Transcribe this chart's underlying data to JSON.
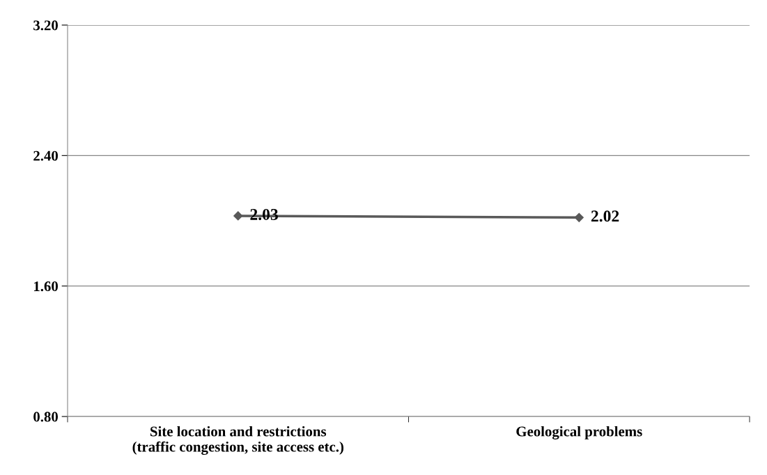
{
  "chart_data": {
    "type": "line",
    "categories": [
      "Site location and restrictions\n(traffic congestion, site access etc.)",
      "Geological problems"
    ],
    "series": [
      {
        "color": "#595959",
        "values": [
          2.03,
          2.02
        ]
      }
    ],
    "ylim": [
      0.8,
      3.2
    ],
    "yticks": [
      {
        "value": 0.8,
        "label": "0.80"
      },
      {
        "value": 1.6,
        "label": "1.60"
      },
      {
        "value": 2.4,
        "label": "2.40"
      },
      {
        "value": 3.2,
        "label": "3.20"
      }
    ],
    "grid": "y",
    "marker": "diamond",
    "data_labels": true,
    "legend": false
  }
}
